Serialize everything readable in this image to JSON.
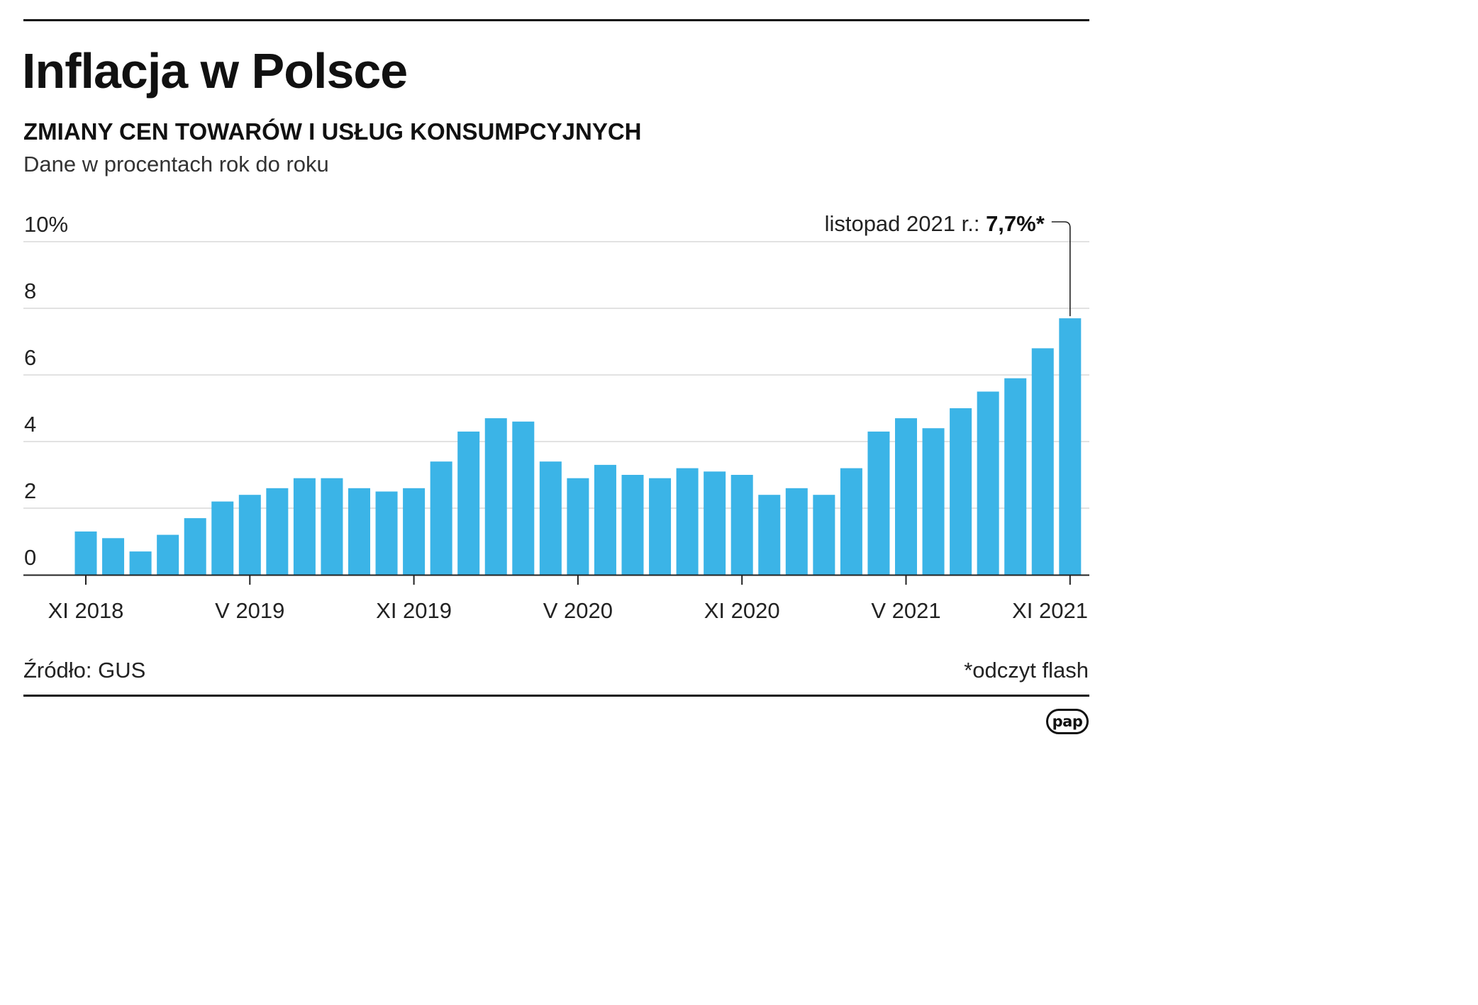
{
  "header": {
    "title": "Inflacja w Polsce",
    "subtitle": "ZMIANY CEN TOWARÓW I USŁUG KONSUMPCYJNYCH",
    "description": "Dane w procentach rok do roku"
  },
  "chart_data": {
    "type": "bar",
    "title": "Inflacja w Polsce",
    "subtitle": "ZMIANY CEN TOWARÓW I USŁUG KONSUMPCYJNYCH",
    "ylabel": "",
    "xlabel": "",
    "ylim": [
      0,
      10
    ],
    "yticks": [
      "0",
      "2",
      "4",
      "6",
      "8",
      "10%"
    ],
    "ytick_values": [
      0,
      2,
      4,
      6,
      8,
      10
    ],
    "grid": true,
    "bar_color": "#3bb4e7",
    "months": [
      "2018-11",
      "2018-12",
      "2019-01",
      "2019-02",
      "2019-03",
      "2019-04",
      "2019-05",
      "2019-06",
      "2019-07",
      "2019-08",
      "2019-09",
      "2019-10",
      "2019-11",
      "2019-12",
      "2020-01",
      "2020-02",
      "2020-03",
      "2020-04",
      "2020-05",
      "2020-06",
      "2020-07",
      "2020-08",
      "2020-09",
      "2020-10",
      "2020-11",
      "2020-12",
      "2021-01",
      "2021-02",
      "2021-03",
      "2021-04",
      "2021-05",
      "2021-06",
      "2021-07",
      "2021-08",
      "2021-09",
      "2021-10",
      "2021-11"
    ],
    "values": [
      1.3,
      1.1,
      0.7,
      1.2,
      1.7,
      2.2,
      2.4,
      2.6,
      2.9,
      2.9,
      2.6,
      2.5,
      2.6,
      3.4,
      4.3,
      4.7,
      4.6,
      3.4,
      2.9,
      3.3,
      3.0,
      2.9,
      3.2,
      3.1,
      3.0,
      2.4,
      2.6,
      2.4,
      3.2,
      4.3,
      4.7,
      4.4,
      5.0,
      5.5,
      5.9,
      6.8,
      7.7
    ],
    "xtick_labels": [
      {
        "month": "2018-11",
        "label": "XI 2018"
      },
      {
        "month": "2019-05",
        "label": "V 2019"
      },
      {
        "month": "2019-11",
        "label": "XI 2019"
      },
      {
        "month": "2020-05",
        "label": "V 2020"
      },
      {
        "month": "2020-11",
        "label": "XI 2020"
      },
      {
        "month": "2021-05",
        "label": "V 2021"
      },
      {
        "month": "2021-11",
        "label": "XI 2021"
      }
    ],
    "annotation": {
      "month": "2021-11",
      "label": "listopad 2021 r.: ",
      "value_label": "7,7%*"
    }
  },
  "footer": {
    "source": "Źródło: GUS",
    "note": "*odczyt flash",
    "logo": "pap"
  }
}
